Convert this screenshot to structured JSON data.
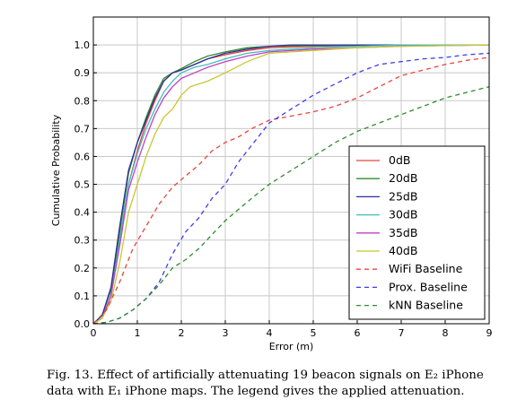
{
  "chart_data": {
    "type": "line",
    "title": "",
    "xlabel": "Error (m)",
    "ylabel": "Cumulative Probability",
    "xlim": [
      0,
      9
    ],
    "ylim": [
      0,
      1.1
    ],
    "x_ticks": [
      "0",
      "1",
      "2",
      "3",
      "4",
      "5",
      "6",
      "7",
      "8",
      "9"
    ],
    "y_ticks": [
      "0.0",
      "0.1",
      "0.2",
      "0.3",
      "0.4",
      "0.5",
      "0.6",
      "0.7",
      "0.8",
      "0.9",
      "1.0"
    ],
    "grid": true,
    "legend_position": "lower-right",
    "series": [
      {
        "name": "0dB",
        "color": "#e8433f",
        "style": "solid",
        "points": [
          [
            0,
            0
          ],
          [
            0.2,
            0.02
          ],
          [
            0.4,
            0.1
          ],
          [
            0.6,
            0.3
          ],
          [
            0.8,
            0.5
          ],
          [
            1.0,
            0.62
          ],
          [
            1.2,
            0.72
          ],
          [
            1.4,
            0.8
          ],
          [
            1.6,
            0.87
          ],
          [
            1.8,
            0.9
          ],
          [
            2.0,
            0.91
          ],
          [
            2.3,
            0.93
          ],
          [
            2.6,
            0.95
          ],
          [
            3.0,
            0.965
          ],
          [
            3.5,
            0.98
          ],
          [
            4.0,
            0.99
          ],
          [
            5,
            0.995
          ],
          [
            6,
            0.998
          ],
          [
            9,
            1.0
          ]
        ]
      },
      {
        "name": "20dB",
        "color": "#2e8b2e",
        "style": "solid",
        "points": [
          [
            0,
            0
          ],
          [
            0.2,
            0.03
          ],
          [
            0.4,
            0.12
          ],
          [
            0.6,
            0.33
          ],
          [
            0.8,
            0.54
          ],
          [
            1.0,
            0.65
          ],
          [
            1.2,
            0.74
          ],
          [
            1.4,
            0.82
          ],
          [
            1.6,
            0.88
          ],
          [
            1.8,
            0.9
          ],
          [
            2.0,
            0.915
          ],
          [
            2.3,
            0.94
          ],
          [
            2.6,
            0.96
          ],
          [
            3.0,
            0.975
          ],
          [
            3.5,
            0.99
          ],
          [
            4.0,
            0.995
          ],
          [
            5,
            0.998
          ],
          [
            9,
            1.0
          ]
        ]
      },
      {
        "name": "25dB",
        "color": "#2b2f9a",
        "style": "solid",
        "points": [
          [
            0,
            0
          ],
          [
            0.2,
            0.03
          ],
          [
            0.4,
            0.13
          ],
          [
            0.6,
            0.35
          ],
          [
            0.8,
            0.55
          ],
          [
            1.0,
            0.65
          ],
          [
            1.2,
            0.73
          ],
          [
            1.4,
            0.81
          ],
          [
            1.6,
            0.87
          ],
          [
            1.8,
            0.9
          ],
          [
            2.0,
            0.91
          ],
          [
            2.3,
            0.93
          ],
          [
            2.6,
            0.95
          ],
          [
            3.0,
            0.97
          ],
          [
            3.5,
            0.985
          ],
          [
            4.0,
            0.995
          ],
          [
            4.5,
            1.0
          ],
          [
            9,
            1.0
          ]
        ]
      },
      {
        "name": "30dB",
        "color": "#3fbfbf",
        "style": "solid",
        "points": [
          [
            0,
            0
          ],
          [
            0.2,
            0.02
          ],
          [
            0.4,
            0.1
          ],
          [
            0.6,
            0.3
          ],
          [
            0.8,
            0.5
          ],
          [
            1.0,
            0.61
          ],
          [
            1.2,
            0.7
          ],
          [
            1.4,
            0.77
          ],
          [
            1.6,
            0.83
          ],
          [
            1.8,
            0.87
          ],
          [
            2.0,
            0.9
          ],
          [
            2.3,
            0.92
          ],
          [
            2.6,
            0.93
          ],
          [
            3.0,
            0.95
          ],
          [
            3.5,
            0.97
          ],
          [
            4.0,
            0.98
          ],
          [
            5,
            0.99
          ],
          [
            6,
            0.995
          ],
          [
            7,
            1.0
          ],
          [
            9,
            1.0
          ]
        ]
      },
      {
        "name": "35dB",
        "color": "#c33fc3",
        "style": "solid",
        "points": [
          [
            0,
            0
          ],
          [
            0.2,
            0.02
          ],
          [
            0.4,
            0.1
          ],
          [
            0.6,
            0.28
          ],
          [
            0.8,
            0.48
          ],
          [
            1.0,
            0.58
          ],
          [
            1.2,
            0.67
          ],
          [
            1.4,
            0.75
          ],
          [
            1.6,
            0.81
          ],
          [
            1.8,
            0.85
          ],
          [
            2.0,
            0.88
          ],
          [
            2.3,
            0.9
          ],
          [
            2.6,
            0.92
          ],
          [
            3.0,
            0.94
          ],
          [
            3.5,
            0.96
          ],
          [
            4.0,
            0.975
          ],
          [
            5,
            0.985
          ],
          [
            6,
            0.99
          ],
          [
            7,
            0.995
          ],
          [
            9,
            1.0
          ]
        ]
      },
      {
        "name": "40dB",
        "color": "#c8c832",
        "style": "solid",
        "points": [
          [
            0,
            0
          ],
          [
            0.2,
            0.02
          ],
          [
            0.4,
            0.08
          ],
          [
            0.6,
            0.22
          ],
          [
            0.8,
            0.4
          ],
          [
            1.0,
            0.5
          ],
          [
            1.2,
            0.6
          ],
          [
            1.4,
            0.68
          ],
          [
            1.6,
            0.74
          ],
          [
            1.8,
            0.77
          ],
          [
            2.0,
            0.82
          ],
          [
            2.2,
            0.85
          ],
          [
            2.4,
            0.86
          ],
          [
            2.6,
            0.87
          ],
          [
            3.0,
            0.9
          ],
          [
            3.5,
            0.94
          ],
          [
            4.0,
            0.97
          ],
          [
            5,
            0.98
          ],
          [
            6,
            0.99
          ],
          [
            7,
            0.995
          ],
          [
            9,
            1.0
          ]
        ]
      },
      {
        "name": "WiFi Baseline",
        "color": "#e8433f",
        "style": "dashed",
        "points": [
          [
            0,
            0
          ],
          [
            0.3,
            0.05
          ],
          [
            0.6,
            0.15
          ],
          [
            0.9,
            0.27
          ],
          [
            1.2,
            0.35
          ],
          [
            1.5,
            0.43
          ],
          [
            1.8,
            0.49
          ],
          [
            2.1,
            0.53
          ],
          [
            2.4,
            0.57
          ],
          [
            2.7,
            0.62
          ],
          [
            3.0,
            0.65
          ],
          [
            3.3,
            0.67
          ],
          [
            3.6,
            0.7
          ],
          [
            4.0,
            0.73
          ],
          [
            4.5,
            0.745
          ],
          [
            5.0,
            0.76
          ],
          [
            5.5,
            0.78
          ],
          [
            6.0,
            0.81
          ],
          [
            6.5,
            0.85
          ],
          [
            7.0,
            0.89
          ],
          [
            7.5,
            0.91
          ],
          [
            8.0,
            0.93
          ],
          [
            8.5,
            0.945
          ],
          [
            9.0,
            0.955
          ]
        ]
      },
      {
        "name": "Prox. Baseline",
        "color": "#3d3df0",
        "style": "dashed",
        "points": [
          [
            0,
            0
          ],
          [
            0.3,
            0.005
          ],
          [
            0.6,
            0.02
          ],
          [
            0.9,
            0.05
          ],
          [
            1.2,
            0.09
          ],
          [
            1.5,
            0.15
          ],
          [
            1.8,
            0.25
          ],
          [
            2.1,
            0.33
          ],
          [
            2.4,
            0.38
          ],
          [
            2.7,
            0.45
          ],
          [
            3.0,
            0.5
          ],
          [
            3.3,
            0.58
          ],
          [
            3.6,
            0.64
          ],
          [
            4.0,
            0.72
          ],
          [
            4.5,
            0.77
          ],
          [
            5.0,
            0.82
          ],
          [
            5.5,
            0.86
          ],
          [
            6.0,
            0.9
          ],
          [
            6.5,
            0.93
          ],
          [
            7.0,
            0.94
          ],
          [
            7.5,
            0.95
          ],
          [
            8.0,
            0.955
          ],
          [
            8.5,
            0.965
          ],
          [
            9.0,
            0.97
          ]
        ]
      },
      {
        "name": "kNN Baseline",
        "color": "#2e8b2e",
        "style": "dashed",
        "points": [
          [
            0,
            0
          ],
          [
            0.3,
            0.005
          ],
          [
            0.6,
            0.02
          ],
          [
            0.9,
            0.05
          ],
          [
            1.2,
            0.09
          ],
          [
            1.5,
            0.14
          ],
          [
            1.8,
            0.2
          ],
          [
            2.1,
            0.23
          ],
          [
            2.4,
            0.27
          ],
          [
            2.7,
            0.32
          ],
          [
            3.0,
            0.37
          ],
          [
            3.3,
            0.41
          ],
          [
            3.6,
            0.45
          ],
          [
            4.0,
            0.5
          ],
          [
            4.5,
            0.55
          ],
          [
            5.0,
            0.6
          ],
          [
            5.5,
            0.65
          ],
          [
            6.0,
            0.69
          ],
          [
            6.5,
            0.72
          ],
          [
            7.0,
            0.75
          ],
          [
            7.5,
            0.78
          ],
          [
            8.0,
            0.81
          ],
          [
            8.5,
            0.83
          ],
          [
            9.0,
            0.85
          ]
        ]
      }
    ]
  },
  "caption": "Fig. 13.  Effect of artificially attenuating 19 beacon signals on E₂ iPhone data with E₁ iPhone maps. The legend gives the applied attenuation."
}
